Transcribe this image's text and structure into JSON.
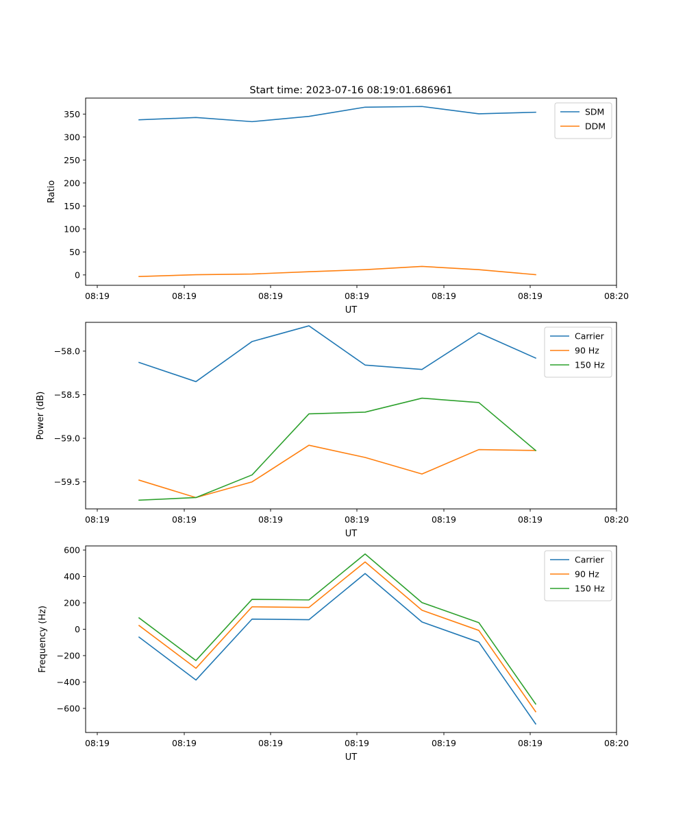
{
  "figure": {
    "title": "Start time: 2023-07-16 08:19:01.686961"
  },
  "chart_data": [
    {
      "type": "line",
      "xlabel": "UT",
      "ylabel": "Ratio",
      "x_tick_labels": [
        "08:19",
        "08:19",
        "08:19",
        "08:19",
        "08:19",
        "08:19",
        "08:20"
      ],
      "yticks": [
        0,
        50,
        100,
        150,
        200,
        250,
        300,
        350
      ],
      "ytick_labels": [
        "0",
        "50",
        "100",
        "150",
        "200",
        "250",
        "300",
        "350"
      ],
      "ylim": [
        -22.6,
        384.8
      ],
      "legend_position": "upper right",
      "series": [
        {
          "name": "SDM",
          "color": "#1f77b4",
          "values": [
            337.5,
            342.5,
            333.5,
            345.0,
            365.0,
            366.5,
            350.5,
            354.0
          ]
        },
        {
          "name": "DDM",
          "color": "#ff7f0e",
          "values": [
            -3.5,
            0.5,
            2.0,
            7.0,
            11.5,
            18.5,
            11.5,
            0.5
          ]
        }
      ]
    },
    {
      "type": "line",
      "xlabel": "UT",
      "ylabel": "Power (dB)",
      "x_tick_labels": [
        "08:19",
        "08:19",
        "08:19",
        "08:19",
        "08:19",
        "08:19",
        "08:20"
      ],
      "yticks": [
        -58.0,
        -58.5,
        -59.0,
        -59.5
      ],
      "ytick_labels": [
        "−58.0",
        "−58.5",
        "−59.0",
        "−59.5"
      ],
      "ylim": [
        -59.81,
        -57.67
      ],
      "legend_position": "upper right",
      "series": [
        {
          "name": "Carrier",
          "color": "#1f77b4",
          "values": [
            -58.13,
            -58.35,
            -57.89,
            -57.71,
            -58.16,
            -58.21,
            -57.79,
            -58.08
          ]
        },
        {
          "name": "90 Hz",
          "color": "#ff7f0e",
          "values": [
            -59.48,
            -59.68,
            -59.5,
            -59.08,
            -59.22,
            -59.41,
            -59.13,
            -59.14
          ]
        },
        {
          "name": "150 Hz",
          "color": "#2ca02c",
          "values": [
            -59.71,
            -59.68,
            -59.42,
            -58.72,
            -58.7,
            -58.54,
            -58.59,
            -59.14
          ]
        }
      ]
    },
    {
      "type": "line",
      "xlabel": "UT",
      "ylabel": "Frequency (Hz)",
      "x_tick_labels": [
        "08:19",
        "08:19",
        "08:19",
        "08:19",
        "08:19",
        "08:19",
        "08:20"
      ],
      "yticks": [
        600,
        400,
        200,
        0,
        -200,
        -400,
        -600
      ],
      "ytick_labels": [
        "600",
        "400",
        "200",
        "0",
        "−200",
        "−400",
        "−600"
      ],
      "ylim": [
        -782.5,
        631.3
      ],
      "legend_position": "upper right",
      "series": [
        {
          "name": "Carrier",
          "color": "#1f77b4",
          "values": [
            -60,
            -385,
            77,
            72,
            422,
            55,
            -98,
            -718
          ]
        },
        {
          "name": "90 Hz",
          "color": "#ff7f0e",
          "values": [
            28,
            -296,
            170,
            165,
            510,
            144,
            -9,
            -625
          ]
        },
        {
          "name": "150 Hz",
          "color": "#2ca02c",
          "values": [
            86,
            -237,
            227,
            222,
            570,
            202,
            50,
            -567
          ]
        }
      ]
    }
  ]
}
